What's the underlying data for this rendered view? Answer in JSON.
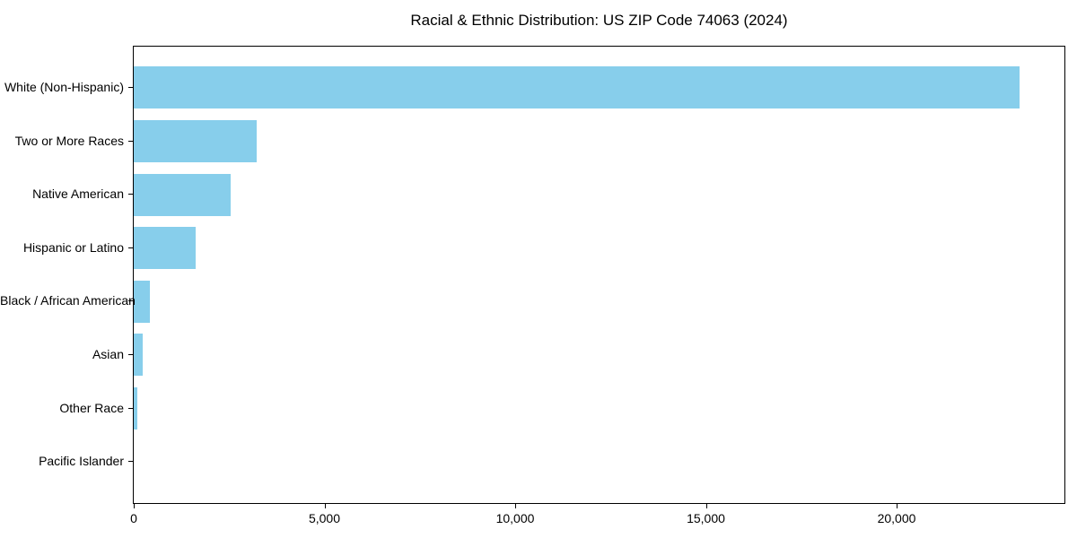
{
  "chart_data": {
    "type": "bar",
    "orientation": "horizontal",
    "title": "Racial & Ethnic Distribution: US ZIP Code 74063 (2024)",
    "categories": [
      "White (Non-Hispanic)",
      "Two or More Races",
      "Native American",
      "Hispanic or Latino",
      "Black / African American",
      "Asian",
      "Other Race",
      "Pacific Islander"
    ],
    "values": [
      23230,
      3230,
      2530,
      1630,
      420,
      230,
      85,
      0
    ],
    "xlabel": "",
    "ylabel": "",
    "xlim": [
      0,
      24400
    ],
    "xticks": [
      0,
      5000,
      10000,
      15000,
      20000
    ],
    "xtick_labels": [
      "0",
      "5,000",
      "10,000",
      "15,000",
      "20,000"
    ],
    "bar_color": "#87CEEB",
    "spine_color": "#000000",
    "grid": false,
    "legend_position": "none"
  }
}
